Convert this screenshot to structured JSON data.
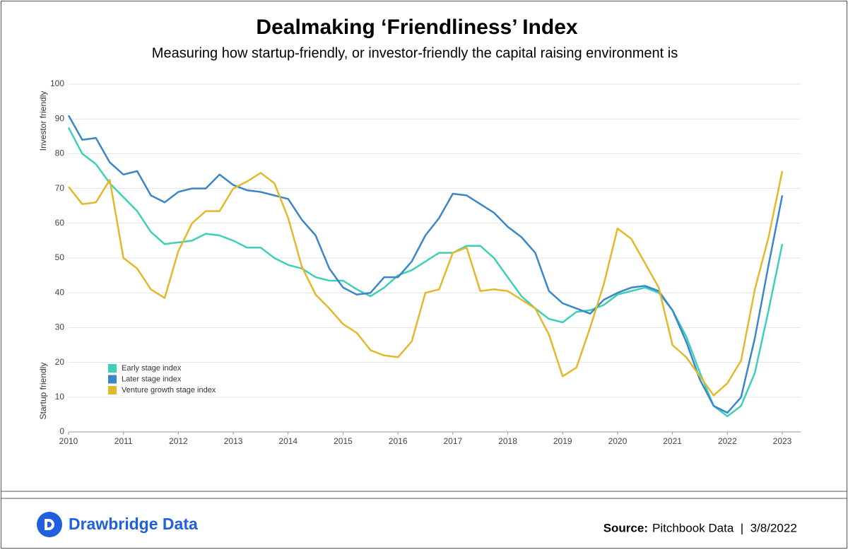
{
  "chart_data": {
    "type": "line",
    "title": "Dealmaking ‘Friendliness’ Index",
    "subtitle": "Measuring how startup-friendly, or investor-friendly the capital raising environment is",
    "ylabel_top": "Investor friendly",
    "ylabel_bottom": "Startup friendly",
    "x": [
      2010,
      2010.25,
      2010.5,
      2010.75,
      2011,
      2011.25,
      2011.5,
      2011.75,
      2012,
      2012.25,
      2012.5,
      2012.75,
      2013,
      2013.25,
      2013.5,
      2013.75,
      2014,
      2014.25,
      2014.5,
      2014.75,
      2015,
      2015.25,
      2015.5,
      2015.75,
      2016,
      2016.25,
      2016.5,
      2016.75,
      2017,
      2017.25,
      2017.5,
      2017.75,
      2018,
      2018.25,
      2018.5,
      2018.75,
      2019,
      2019.25,
      2019.5,
      2019.75,
      2020,
      2020.25,
      2020.5,
      2020.75,
      2021,
      2021.25,
      2021.5,
      2021.75,
      2022,
      2022.25,
      2022.5,
      2022.75,
      2023
    ],
    "series": [
      {
        "name": "Early stage index",
        "color": "#3ecfb8",
        "values": [
          87.5,
          80,
          77,
          71.5,
          67.5,
          63.5,
          57.5,
          54,
          54.5,
          55,
          57,
          56.5,
          55,
          53,
          53,
          50,
          48,
          47,
          44.5,
          43.5,
          43.5,
          41,
          39,
          41.5,
          45,
          46.5,
          49,
          51.5,
          51.5,
          53.5,
          53.5,
          50,
          44.5,
          39,
          35.5,
          32.5,
          31.5,
          34.5,
          35,
          36.5,
          39.5,
          40.5,
          41.5,
          40,
          35,
          27.5,
          17,
          7.5,
          4.5,
          7.5,
          17,
          35,
          54
        ]
      },
      {
        "name": "Later stage index",
        "color": "#3a86c8",
        "values": [
          91,
          84,
          84.5,
          77.5,
          74,
          75,
          68,
          66,
          69,
          70,
          70,
          74,
          71,
          69.5,
          69,
          68,
          67,
          61,
          56.5,
          47,
          41.5,
          39.5,
          40,
          44.5,
          44.5,
          49,
          56.5,
          61.5,
          68.5,
          68,
          65.5,
          63,
          59,
          56,
          51.5,
          40.5,
          37,
          35.5,
          34,
          38,
          40,
          41.5,
          42,
          40.5,
          35,
          26,
          15,
          7.5,
          5.5,
          10,
          27,
          48,
          68
        ]
      },
      {
        "name": "Venture growth stage index",
        "color": "#e3b82b",
        "values": [
          70.5,
          65.5,
          66,
          72.5,
          50,
          47,
          41,
          38.5,
          52,
          60,
          63.5,
          63.5,
          70,
          72,
          74.5,
          71.5,
          61.5,
          47.5,
          39.5,
          35.5,
          31,
          28.5,
          23.5,
          22,
          21.5,
          26,
          40,
          41,
          51.5,
          53,
          40.5,
          41,
          40.5,
          38,
          35.5,
          28,
          16,
          18.5,
          30,
          42.5,
          58.5,
          55.5,
          48.5,
          41.5,
          25,
          21.5,
          16,
          10.5,
          14,
          20.5,
          41,
          56,
          75
        ]
      }
    ],
    "xlim": [
      2010,
      2023
    ],
    "xticks": [
      2010,
      2011,
      2012,
      2013,
      2014,
      2015,
      2016,
      2017,
      2018,
      2019,
      2020,
      2021,
      2022,
      2023
    ],
    "ylim": [
      0,
      100
    ],
    "yticks": [
      0,
      10,
      20,
      30,
      40,
      50,
      60,
      70,
      80,
      90,
      100
    ],
    "grid": true,
    "legend": "lower-left"
  },
  "footer": {
    "brand": "Drawbridge Data",
    "source_label": "Source:",
    "source_text": "Pitchbook Data  |  3/8/2022"
  }
}
